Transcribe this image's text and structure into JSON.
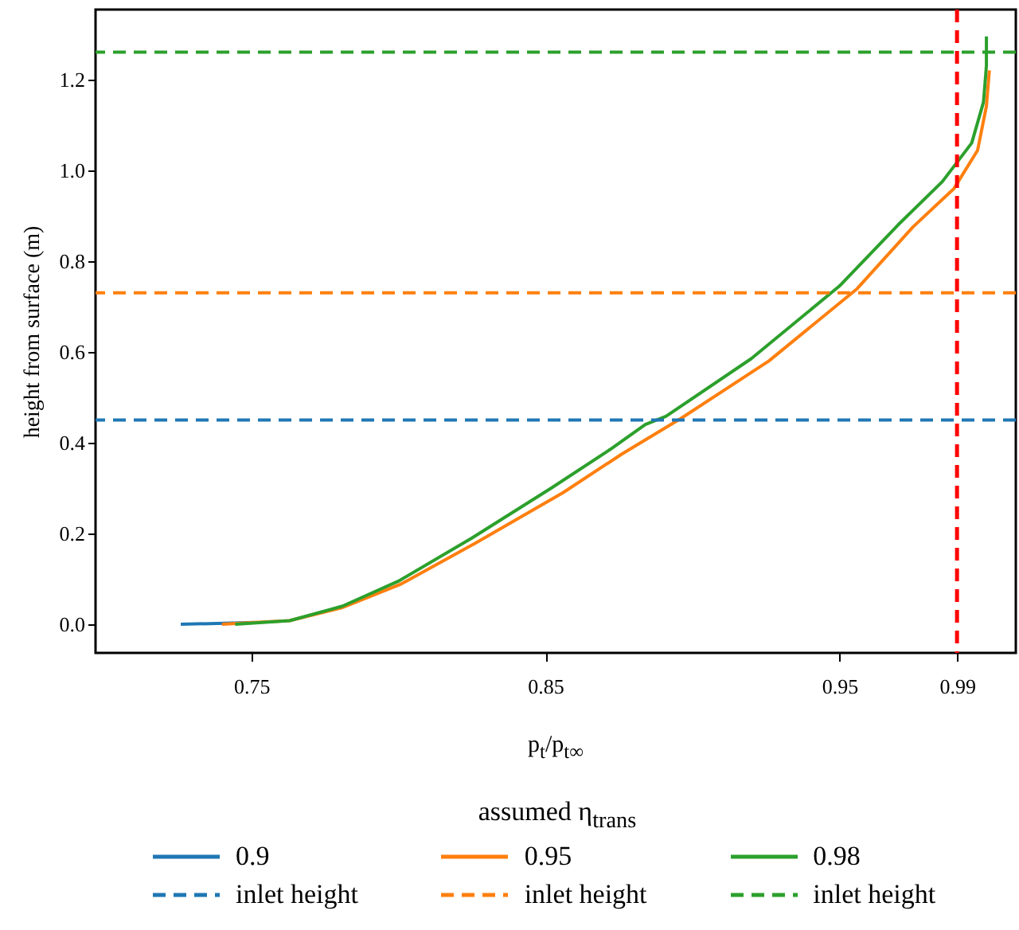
{
  "chart_data": {
    "type": "line",
    "xlabel": "p$_{t}$/p$_{t∞}$",
    "ylabel": "height from surface (m)",
    "legend_title": "assumed η$_{trans}$",
    "legend": "bottom",
    "xlim": [
      0.697,
      1.01
    ],
    "xticks": [
      0.75,
      0.85,
      0.95,
      0.99
    ],
    "ylim": [
      -0.063,
      1.354
    ],
    "yticks": [
      {
        "value": 0,
        "label": "0.0"
      },
      0.2,
      0.4,
      0.6,
      0.8,
      {
        "value": 1,
        "label": "1.0"
      },
      1.2
    ],
    "grid": false,
    "series": [
      {
        "name": "0.9",
        "color": "#1f77b4",
        "x": [
          0.726,
          0.751
        ],
        "values": [
          0,
          0.004
        ]
      },
      {
        "name": "0.95",
        "color": "#ff7f0e",
        "x": [
          0.74,
          0.751,
          0.763,
          0.781,
          0.801,
          0.8265,
          0.856,
          0.876,
          0.896,
          0.926,
          0.956,
          0.975,
          0.989,
          0.997,
          1.0,
          1.001
        ],
        "values": [
          0,
          0.004,
          0.008,
          0.037,
          0.089,
          0.18,
          0.29,
          0.375,
          0.453,
          0.58,
          0.739,
          0.875,
          0.96,
          1.044,
          1.141,
          1.22
        ]
      },
      {
        "name": "0.98",
        "color": "#2ca02c",
        "x": [
          0.7445,
          0.763,
          0.781,
          0.8,
          0.825,
          0.852,
          0.872,
          0.884,
          0.891,
          0.92,
          0.95,
          0.97,
          0.985,
          0.995,
          0.999,
          1.0,
          1.0
        ],
        "values": [
          0,
          0.008,
          0.04,
          0.095,
          0.19,
          0.3,
          0.385,
          0.44,
          0.458,
          0.585,
          0.745,
          0.88,
          0.975,
          1.06,
          1.15,
          1.23,
          1.295
        ]
      }
    ],
    "ref_lines": [
      {
        "axis": "y",
        "value": 0.45,
        "label": "inlet height",
        "color": "#1f77b4",
        "line_style": "dashed"
      },
      {
        "axis": "y",
        "value": 0.73,
        "label": "inlet height",
        "color": "#ff7f0e",
        "line_style": "dashed"
      },
      {
        "axis": "y",
        "value": 1.26,
        "label": "inlet height",
        "color": "#2ca02c",
        "line_style": "dashed"
      },
      {
        "axis": "x",
        "value": 0.99,
        "color": "#ff0000",
        "line_style": "dashed"
      }
    ]
  }
}
